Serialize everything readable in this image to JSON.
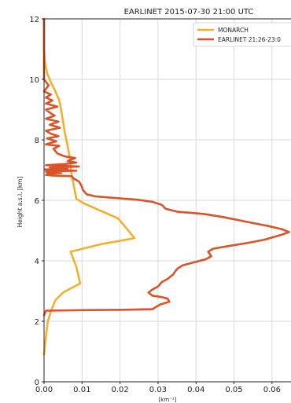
{
  "chart_data": {
    "type": "line",
    "title": "EARLINET 2015-07-30 21:00 UTC",
    "xlabel": "[km⁻¹]",
    "ylabel": "Height a.s.l. [km]",
    "xlim": [
      0.0,
      0.065
    ],
    "ylim": [
      0,
      12
    ],
    "xticks": [
      "0.00",
      "0.01",
      "0.02",
      "0.03",
      "0.04",
      "0.05",
      "0.06"
    ],
    "xtick_values": [
      0.0,
      0.01,
      0.02,
      0.03,
      0.04,
      0.05,
      0.06
    ],
    "yticks": [
      "0",
      "2",
      "4",
      "6",
      "8",
      "10",
      "12"
    ],
    "ytick_values": [
      0,
      2,
      4,
      6,
      8,
      10,
      12
    ],
    "grid": true,
    "legend_position": "top-right",
    "series": [
      {
        "name": "MONARCH",
        "color": "#f0b030",
        "points": [
          [
            0.0,
            0.9
          ],
          [
            0.0005,
            1.5
          ],
          [
            0.001,
            2.0
          ],
          [
            0.002,
            2.4
          ],
          [
            0.003,
            2.7
          ],
          [
            0.005,
            2.95
          ],
          [
            0.008,
            3.15
          ],
          [
            0.0095,
            3.25
          ],
          [
            0.0085,
            3.8
          ],
          [
            0.007,
            4.3
          ],
          [
            0.015,
            4.55
          ],
          [
            0.0238,
            4.75
          ],
          [
            0.0215,
            5.1
          ],
          [
            0.0195,
            5.4
          ],
          [
            0.015,
            5.65
          ],
          [
            0.0105,
            5.9
          ],
          [
            0.0085,
            6.05
          ],
          [
            0.0078,
            6.5
          ],
          [
            0.0072,
            6.9
          ],
          [
            0.0068,
            7.4
          ],
          [
            0.0062,
            7.8
          ],
          [
            0.0055,
            8.2
          ],
          [
            0.005,
            8.6
          ],
          [
            0.0045,
            9.0
          ],
          [
            0.004,
            9.3
          ],
          [
            0.003,
            9.6
          ],
          [
            0.0018,
            9.9
          ],
          [
            0.0008,
            10.2
          ],
          [
            0.0002,
            10.6
          ],
          [
            0.0,
            11.0
          ],
          [
            0.0,
            12.0
          ]
        ]
      },
      {
        "name": "EARLINET 21:26-23:0",
        "color": "#d9542a",
        "points": [
          [
            0.0,
            2.2
          ],
          [
            0.0005,
            2.35
          ],
          [
            0.01,
            2.37
          ],
          [
            0.02,
            2.38
          ],
          [
            0.0285,
            2.4
          ],
          [
            0.0305,
            2.55
          ],
          [
            0.033,
            2.65
          ],
          [
            0.0325,
            2.75
          ],
          [
            0.031,
            2.8
          ],
          [
            0.0285,
            2.85
          ],
          [
            0.0275,
            2.95
          ],
          [
            0.0285,
            3.05
          ],
          [
            0.03,
            3.15
          ],
          [
            0.031,
            3.3
          ],
          [
            0.0325,
            3.4
          ],
          [
            0.034,
            3.55
          ],
          [
            0.0345,
            3.65
          ],
          [
            0.0352,
            3.75
          ],
          [
            0.0365,
            3.85
          ],
          [
            0.0395,
            3.95
          ],
          [
            0.0425,
            4.05
          ],
          [
            0.044,
            4.15
          ],
          [
            0.0432,
            4.3
          ],
          [
            0.0445,
            4.4
          ],
          [
            0.049,
            4.5
          ],
          [
            0.054,
            4.6
          ],
          [
            0.058,
            4.7
          ],
          [
            0.0622,
            4.85
          ],
          [
            0.0645,
            4.95
          ],
          [
            0.0625,
            5.05
          ],
          [
            0.059,
            5.15
          ],
          [
            0.053,
            5.3
          ],
          [
            0.047,
            5.45
          ],
          [
            0.042,
            5.55
          ],
          [
            0.0352,
            5.62
          ],
          [
            0.032,
            5.72
          ],
          [
            0.031,
            5.85
          ],
          [
            0.0285,
            5.95
          ],
          [
            0.0245,
            6.02
          ],
          [
            0.0185,
            6.08
          ],
          [
            0.0135,
            6.13
          ],
          [
            0.0112,
            6.2
          ],
          [
            0.0102,
            6.35
          ],
          [
            0.0098,
            6.5
          ],
          [
            0.0092,
            6.62
          ],
          [
            0.0078,
            6.72
          ],
          [
            0.0072,
            6.8
          ],
          [
            0.0022,
            6.82
          ],
          [
            0.0005,
            6.84
          ],
          [
            0.0025,
            6.86
          ],
          [
            0.0008,
            6.88
          ],
          [
            0.0045,
            6.9
          ],
          [
            0.0012,
            6.92
          ],
          [
            0.0005,
            6.95
          ],
          [
            0.0085,
            6.98
          ],
          [
            0.0002,
            7.02
          ],
          [
            0.0062,
            7.05
          ],
          [
            0.0015,
            7.08
          ],
          [
            0.0092,
            7.12
          ],
          [
            0.0005,
            7.16
          ],
          [
            0.0055,
            7.2
          ],
          [
            0.0085,
            7.25
          ],
          [
            0.0062,
            7.3
          ],
          [
            0.0072,
            7.35
          ],
          [
            0.0082,
            7.4
          ],
          [
            0.0055,
            7.45
          ],
          [
            0.0035,
            7.55
          ],
          [
            0.0025,
            7.7
          ],
          [
            0.004,
            7.8
          ],
          [
            0.0005,
            7.85
          ],
          [
            0.0032,
            7.95
          ],
          [
            0.0008,
            8.05
          ],
          [
            0.0038,
            8.12
          ],
          [
            0.0018,
            8.2
          ],
          [
            0.0005,
            8.3
          ],
          [
            0.0042,
            8.4
          ],
          [
            0.0015,
            8.5
          ],
          [
            0.0038,
            8.6
          ],
          [
            0.0005,
            8.7
          ],
          [
            0.0028,
            8.8
          ],
          [
            0.0015,
            8.9
          ],
          [
            0.0005,
            9.0
          ],
          [
            0.0035,
            9.1
          ],
          [
            0.0005,
            9.2
          ],
          [
            0.0022,
            9.3
          ],
          [
            0.0005,
            9.4
          ],
          [
            0.0018,
            9.5
          ],
          [
            0.0,
            9.6
          ],
          [
            0.0012,
            9.8
          ],
          [
            0.0,
            10.0
          ],
          [
            0.0,
            12.0
          ]
        ]
      }
    ]
  }
}
